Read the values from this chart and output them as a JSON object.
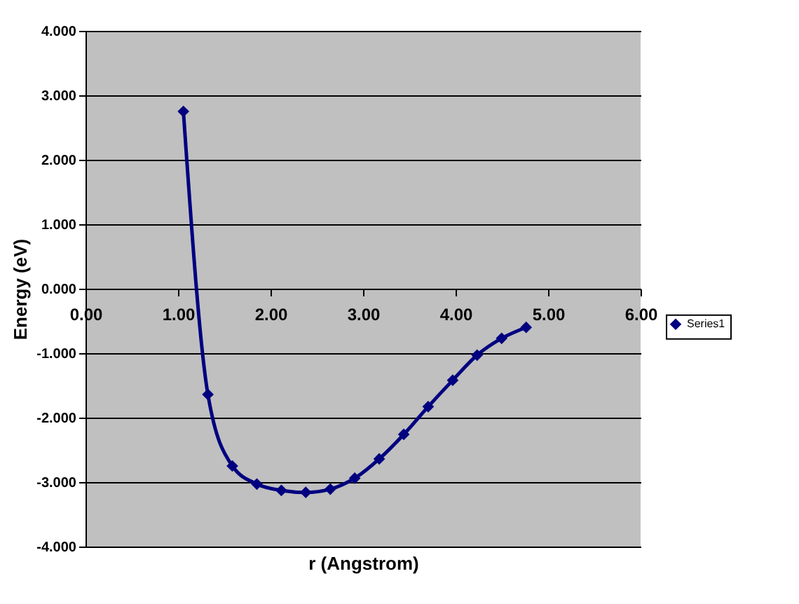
{
  "chart_data": {
    "type": "line",
    "xlabel": "r (Angstrom)",
    "ylabel": "Energy (eV)",
    "x": [
      1.058,
      1.323,
      1.587,
      1.852,
      2.117,
      2.381,
      2.646,
      2.91,
      3.175,
      3.44,
      3.704,
      3.969,
      4.233,
      4.498,
      4.763
    ],
    "series": [
      {
        "name": "Series1",
        "color": "#000080",
        "values": [
          2.75,
          -1.64,
          -2.75,
          -3.03,
          -3.13,
          -3.16,
          -3.11,
          -2.94,
          -2.64,
          -2.26,
          -1.83,
          -1.42,
          -1.03,
          -0.77,
          -0.6
        ]
      }
    ],
    "xlim": [
      0,
      6
    ],
    "xticks": [
      {
        "value": 0,
        "label": "0.00"
      },
      {
        "value": 1,
        "label": "1.00"
      },
      {
        "value": 2,
        "label": "2.00"
      },
      {
        "value": 3,
        "label": "3.00"
      },
      {
        "value": 4,
        "label": "4.00"
      },
      {
        "value": 5,
        "label": "5.00"
      },
      {
        "value": 6,
        "label": "6.00"
      }
    ],
    "ylim": [
      -4,
      4
    ],
    "yticks": [
      {
        "value": -4,
        "label": "-4.000"
      },
      {
        "value": -3,
        "label": "-3.000"
      },
      {
        "value": -2,
        "label": "-2.000"
      },
      {
        "value": -1,
        "label": "-1.000"
      },
      {
        "value": 0,
        "label": "0.000"
      },
      {
        "value": 1,
        "label": "1.000"
      },
      {
        "value": 2,
        "label": "2.000"
      },
      {
        "value": 3,
        "label": "3.000"
      },
      {
        "value": 4,
        "label": "4.000"
      }
    ],
    "grid": "y",
    "legend": "right",
    "marker": "diamond",
    "line_style": "solid"
  }
}
